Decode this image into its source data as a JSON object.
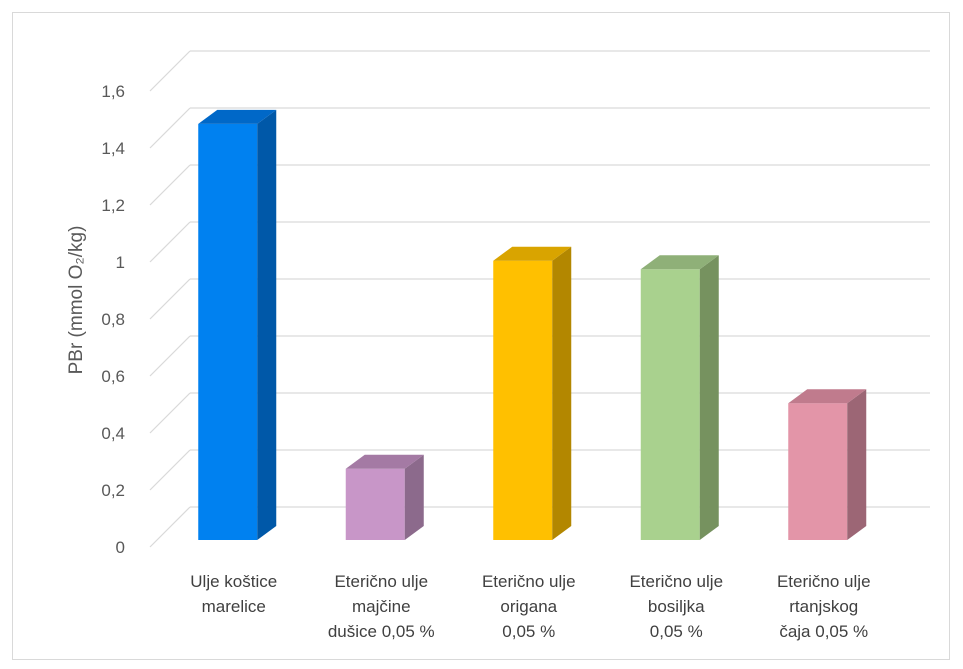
{
  "chart_data": {
    "type": "bar",
    "style": "3d-column",
    "ylabel": "PBr (mmol O₂/kg)",
    "ylim": [
      0,
      1.6
    ],
    "ytick_step": 0.2,
    "ytick_labels": [
      "0",
      "0,2",
      "0,4",
      "0,6",
      "0,8",
      "1",
      "1,2",
      "1,4",
      "1,6"
    ],
    "grid": true,
    "categories": [
      [
        "Ulje koštice",
        "marelice"
      ],
      [
        "Eterično ulje",
        "majčine",
        "dušice 0,05 %"
      ],
      [
        "Eterično ulje",
        "origana",
        "0,05 %"
      ],
      [
        "Eterično ulje",
        "bosiljka",
        "0,05 %"
      ],
      [
        "Eterično ulje",
        "rtanjskog",
        "čaja 0,05 %"
      ]
    ],
    "values": [
      1.46,
      0.25,
      0.98,
      0.95,
      0.48
    ],
    "colors": [
      "#0081f0",
      "#c896c8",
      "#ffc000",
      "#a9d18e",
      "#e395a8"
    ],
    "side_colors": [
      "#0058a8",
      "#8c6a8c",
      "#b38700",
      "#76925f",
      "#9c6675"
    ],
    "top_colors": [
      "#0068c8",
      "#a47aa4",
      "#d9a400",
      "#8fb078",
      "#c07b8d"
    ]
  }
}
